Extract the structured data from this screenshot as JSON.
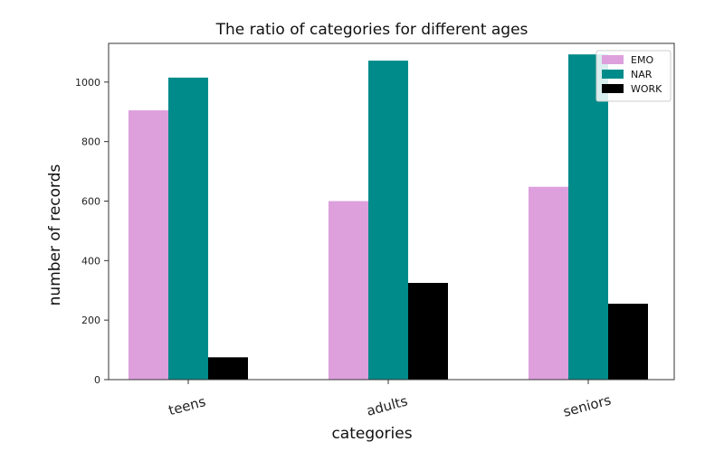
{
  "chart_data": {
    "type": "bar",
    "title": "The ratio of categories for different ages",
    "xlabel": "categories",
    "ylabel": "number of records",
    "categories": [
      "teens",
      "adults",
      "seniors"
    ],
    "series": [
      {
        "name": "EMO",
        "color": "#dda0dd",
        "values": [
          905,
          600,
          648
        ]
      },
      {
        "name": "NAR",
        "color": "#008b8b",
        "values": [
          1015,
          1072,
          1093
        ]
      },
      {
        "name": "WORK",
        "color": "#000000",
        "values": [
          75,
          325,
          255
        ]
      }
    ],
    "ylim": [
      0,
      1130
    ],
    "yticks": [
      0,
      200,
      400,
      600,
      800,
      1000
    ],
    "grid": false,
    "legend_position": "top-right",
    "xtick_rotation": "slanted"
  }
}
